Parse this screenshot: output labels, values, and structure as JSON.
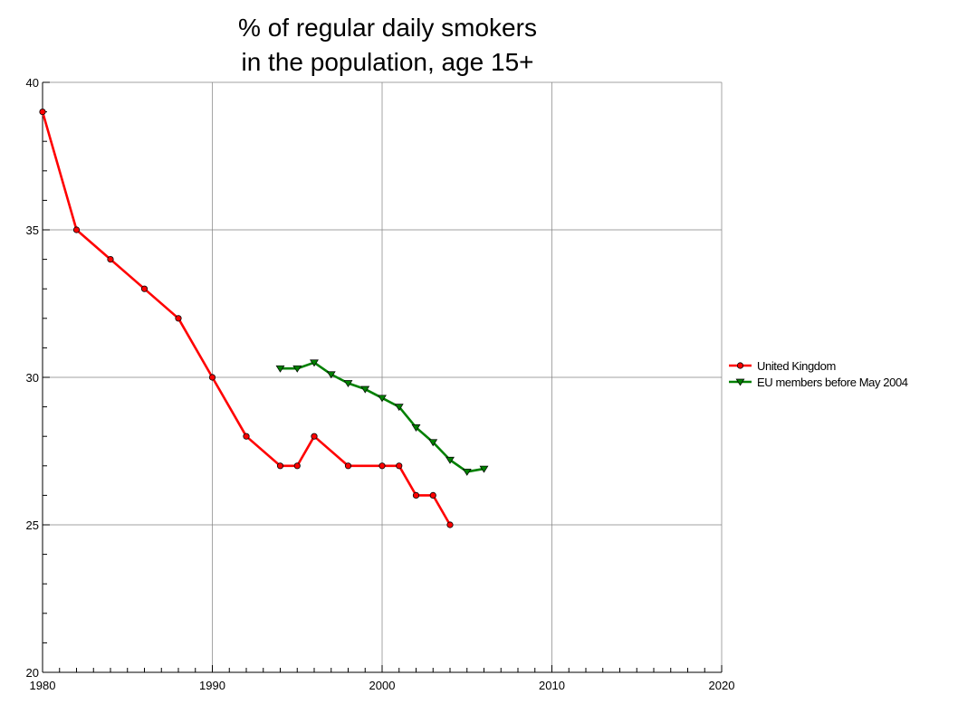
{
  "chart_data": {
    "type": "line",
    "title_lines": [
      "% of regular daily smokers",
      "in the population, age 15+"
    ],
    "xlabel": "",
    "ylabel": "",
    "xlim": [
      1980,
      2020
    ],
    "ylim": [
      20,
      40
    ],
    "x_ticks": [
      1980,
      1990,
      2000,
      2010,
      2020
    ],
    "y_ticks": [
      20,
      25,
      30,
      35,
      40
    ],
    "x_minor_step": 1,
    "grid": true,
    "legend_position": "right",
    "series": [
      {
        "name": "United Kingdom",
        "color": "#ff0000",
        "marker": "circle",
        "x": [
          1980,
          1982,
          1984,
          1986,
          1988,
          1990,
          1992,
          1994,
          1995,
          1996,
          1998,
          2000,
          2001,
          2002,
          2003,
          2004
        ],
        "y": [
          39,
          35,
          34,
          33,
          32,
          30,
          28,
          27,
          27,
          28,
          27,
          27,
          27,
          26,
          26,
          25
        ]
      },
      {
        "name": "EU members before May 2004",
        "color": "#008000",
        "marker": "triangle-down",
        "x": [
          1994,
          1995,
          1996,
          1997,
          1998,
          1999,
          2000,
          2001,
          2002,
          2003,
          2004,
          2005,
          2006
        ],
        "y": [
          30.3,
          30.3,
          30.5,
          30.1,
          29.8,
          29.6,
          29.3,
          29.0,
          28.3,
          27.8,
          27.2,
          26.8,
          26.9
        ]
      }
    ]
  }
}
